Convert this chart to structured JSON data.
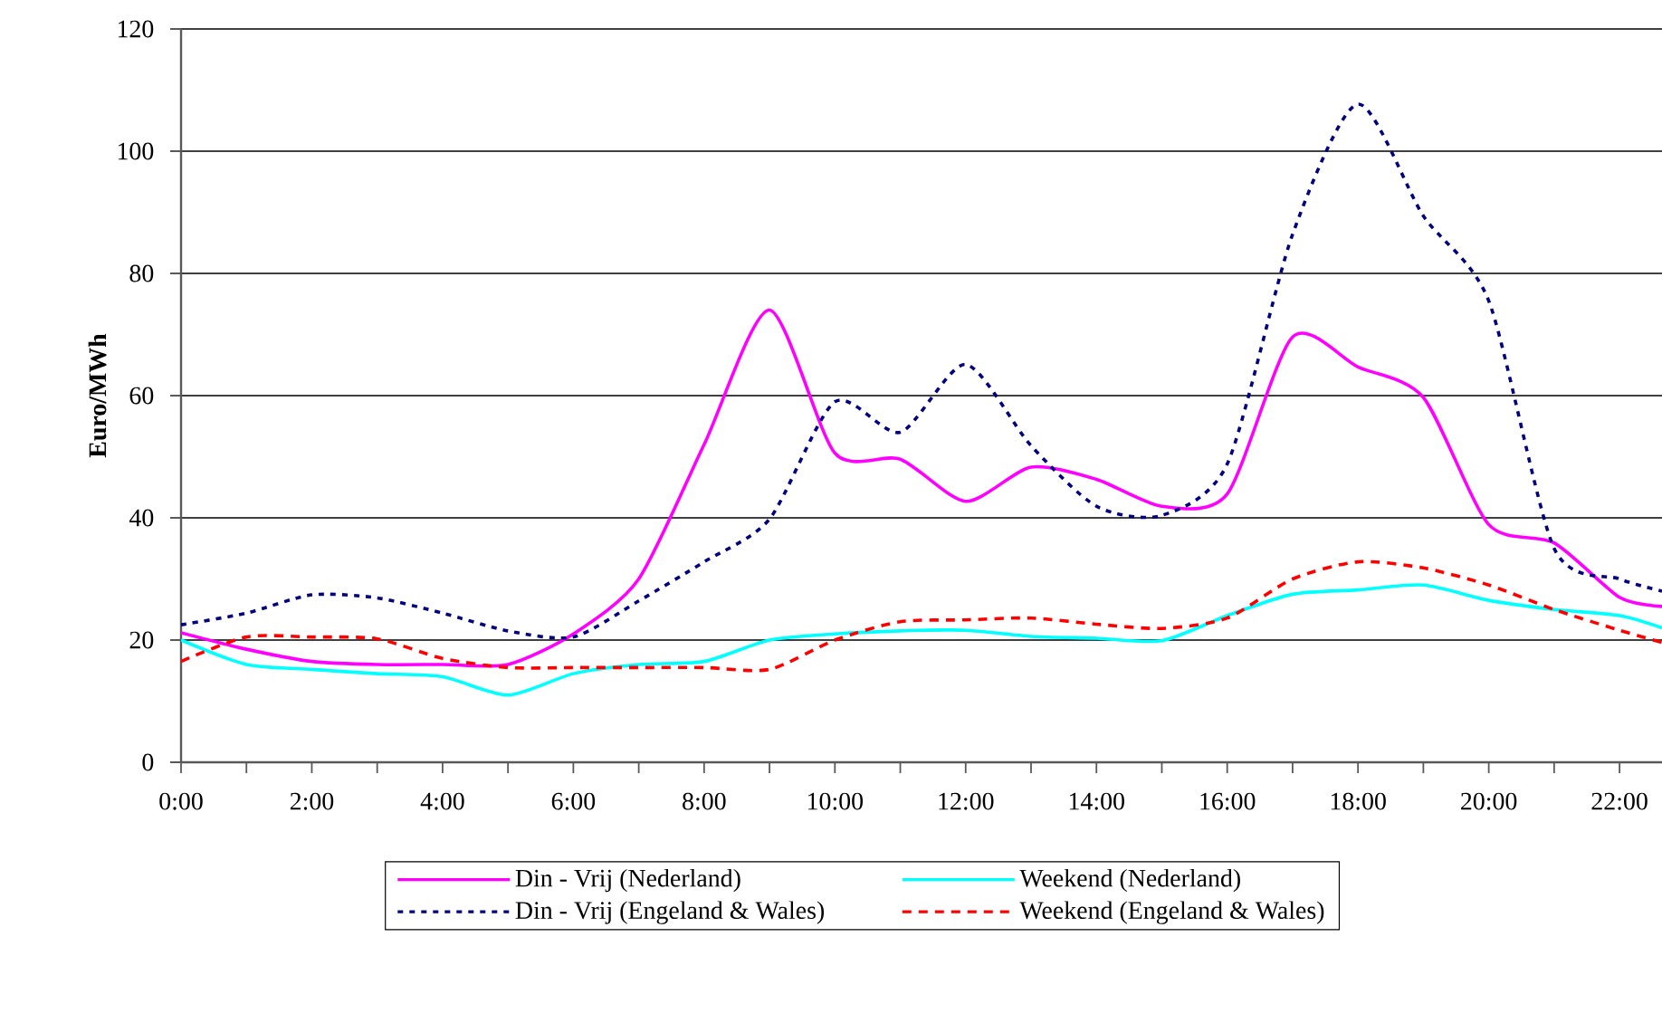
{
  "chart_data": {
    "type": "line",
    "ylabel": "Euro/MWh",
    "x": [
      0,
      1,
      2,
      3,
      4,
      5,
      6,
      7,
      8,
      9,
      10,
      11,
      12,
      13,
      14,
      15,
      16,
      17,
      18,
      19,
      20,
      21,
      22,
      22.65
    ],
    "series": [
      {
        "name": "Din - Vrij (Nederland)",
        "color": "#ff00ff",
        "line_style": "solid",
        "values": [
          21.2,
          18.5,
          16.5,
          16,
          16,
          16,
          21,
          30,
          52,
          74,
          50.6,
          49.6,
          42.7,
          48.3,
          46.3,
          41.9,
          43.9,
          69.6,
          64.7,
          59.7,
          38.9,
          35.9,
          27,
          25.5
        ]
      },
      {
        "name": "Weekend (Nederland)",
        "color": "#00ffff",
        "line_style": "solid",
        "values": [
          20,
          16,
          15.2,
          14.5,
          14,
          11,
          14.5,
          16,
          16.5,
          20,
          21,
          21.5,
          21.6,
          20.6,
          20.3,
          19.9,
          24,
          27.5,
          28.2,
          29,
          26.5,
          25,
          24,
          22
        ]
      },
      {
        "name": "Din - Vrij (Engeland & Wales)",
        "color": "#000080",
        "line_style": "dotted",
        "values": [
          22.5,
          24.4,
          27.4,
          26.9,
          24.4,
          21.5,
          20.5,
          26.4,
          32.8,
          39.8,
          59,
          54,
          65.1,
          51.8,
          41.9,
          40.4,
          48.8,
          86.4,
          107.7,
          89.4,
          75.5,
          35,
          30,
          28
        ]
      },
      {
        "name": "Weekend (Engeland & Wales)",
        "color": "#ff0000",
        "line_style": "dashed",
        "values": [
          16.5,
          20.5,
          20.5,
          20.2,
          17,
          15.5,
          15.5,
          15.5,
          15.5,
          15.2,
          20,
          23,
          23.3,
          23.6,
          22.6,
          21.9,
          23.6,
          30,
          32.8,
          31.8,
          29,
          25,
          21.6,
          19.6
        ]
      }
    ],
    "xlim": [
      0,
      22.65
    ],
    "xticks": [
      {
        "value": 0,
        "label": "0:00"
      },
      {
        "value": 1,
        "label": null
      },
      {
        "value": 2,
        "label": "2:00"
      },
      {
        "value": 3,
        "label": null
      },
      {
        "value": 4,
        "label": "4:00"
      },
      {
        "value": 5,
        "label": null
      },
      {
        "value": 6,
        "label": "6:00"
      },
      {
        "value": 7,
        "label": null
      },
      {
        "value": 8,
        "label": "8:00"
      },
      {
        "value": 9,
        "label": null
      },
      {
        "value": 10,
        "label": "10:00"
      },
      {
        "value": 11,
        "label": null
      },
      {
        "value": 12,
        "label": "12:00"
      },
      {
        "value": 13,
        "label": null
      },
      {
        "value": 14,
        "label": "14:00"
      },
      {
        "value": 15,
        "label": null
      },
      {
        "value": 16,
        "label": "16:00"
      },
      {
        "value": 17,
        "label": null
      },
      {
        "value": 18,
        "label": "18:00"
      },
      {
        "value": 19,
        "label": null
      },
      {
        "value": 20,
        "label": "20:00"
      },
      {
        "value": 21,
        "label": null
      },
      {
        "value": 22,
        "label": "22:00"
      }
    ],
    "ylim": [
      0,
      120
    ],
    "yticks": [
      0,
      20,
      40,
      60,
      80,
      100,
      120
    ],
    "grid": "y",
    "legend": "bottom",
    "marker": "none"
  }
}
